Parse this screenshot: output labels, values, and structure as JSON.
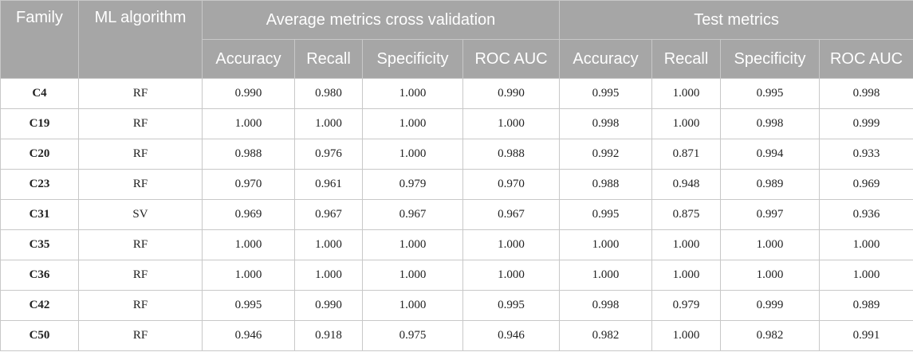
{
  "headers": {
    "family": "Family",
    "ml_algorithm": "ML algorithm",
    "cv_group": "Average metrics cross validation",
    "test_group": "Test metrics",
    "metrics": [
      "Accuracy",
      "Recall",
      "Specificity",
      "ROC AUC"
    ]
  },
  "rows": [
    {
      "family": "C4",
      "algorithm": "RF",
      "cv": [
        "0.990",
        "0.980",
        "1.000",
        "0.990"
      ],
      "test": [
        "0.995",
        "1.000",
        "0.995",
        "0.998"
      ]
    },
    {
      "family": "C19",
      "algorithm": "RF",
      "cv": [
        "1.000",
        "1.000",
        "1.000",
        "1.000"
      ],
      "test": [
        "0.998",
        "1.000",
        "0.998",
        "0.999"
      ]
    },
    {
      "family": "C20",
      "algorithm": "RF",
      "cv": [
        "0.988",
        "0.976",
        "1.000",
        "0.988"
      ],
      "test": [
        "0.992",
        "0.871",
        "0.994",
        "0.933"
      ]
    },
    {
      "family": "C23",
      "algorithm": "RF",
      "cv": [
        "0.970",
        "0.961",
        "0.979",
        "0.970"
      ],
      "test": [
        "0.988",
        "0.948",
        "0.989",
        "0.969"
      ]
    },
    {
      "family": "C31",
      "algorithm": "SV",
      "cv": [
        "0.969",
        "0.967",
        "0.967",
        "0.967"
      ],
      "test": [
        "0.995",
        "0.875",
        "0.997",
        "0.936"
      ]
    },
    {
      "family": "C35",
      "algorithm": "RF",
      "cv": [
        "1.000",
        "1.000",
        "1.000",
        "1.000"
      ],
      "test": [
        "1.000",
        "1.000",
        "1.000",
        "1.000"
      ]
    },
    {
      "family": "C36",
      "algorithm": "RF",
      "cv": [
        "1.000",
        "1.000",
        "1.000",
        "1.000"
      ],
      "test": [
        "1.000",
        "1.000",
        "1.000",
        "1.000"
      ]
    },
    {
      "family": "C42",
      "algorithm": "RF",
      "cv": [
        "0.995",
        "0.990",
        "1.000",
        "0.995"
      ],
      "test": [
        "0.998",
        "0.979",
        "0.999",
        "0.989"
      ]
    },
    {
      "family": "C50",
      "algorithm": "RF",
      "cv": [
        "0.946",
        "0.918",
        "0.975",
        "0.946"
      ],
      "test": [
        "0.982",
        "1.000",
        "0.982",
        "0.991"
      ]
    }
  ]
}
